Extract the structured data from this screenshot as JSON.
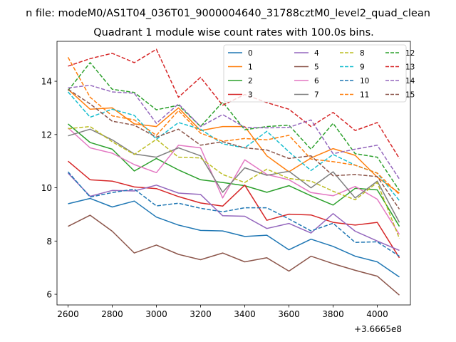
{
  "chart_data": {
    "type": "line",
    "suptitle": "n file: modeM0/AS1T04_036T01_9000004640_31788cztM0_level2_quad_clean",
    "title": "Quadrant 1 module wise count rates with 100.0s bins.",
    "xlabel": "",
    "ylabel": "",
    "x_offset_label": "+3.6665e8",
    "xlim": [
      2550,
      4150
    ],
    "ylim": [
      5.6,
      15.5
    ],
    "xticks": [
      2600,
      2800,
      3000,
      3200,
      3400,
      3600,
      3800,
      4000
    ],
    "xtick_labels": [
      "2600",
      "2800",
      "3000",
      "3200",
      "3400",
      "3600",
      "3800",
      "4000"
    ],
    "yticks": [
      6,
      8,
      10,
      12,
      14
    ],
    "ytick_labels": [
      "6",
      "8",
      "10",
      "12",
      "14"
    ],
    "grid": false,
    "legend_position": "top-right",
    "legend_columns": 4,
    "x": [
      2600,
      2700,
      2800,
      2900,
      3000,
      3100,
      3200,
      3300,
      3400,
      3500,
      3600,
      3700,
      3800,
      3900,
      4000,
      4100
    ],
    "series": [
      {
        "name": "0",
        "color": "#1f77b4",
        "dash": "solid",
        "values": [
          9.4,
          9.6,
          9.28,
          9.5,
          8.9,
          8.6,
          8.4,
          8.38,
          8.17,
          8.22,
          7.67,
          8.07,
          7.8,
          7.43,
          7.22,
          6.65
        ]
      },
      {
        "name": "1",
        "color": "#ff7f0e",
        "dash": "solid",
        "values": [
          13.7,
          12.95,
          13.0,
          12.4,
          12.3,
          13.0,
          12.15,
          12.3,
          12.3,
          11.2,
          10.6,
          11.12,
          11.47,
          11.22,
          10.4,
          9.8
        ]
      },
      {
        "name": "2",
        "color": "#2ca02c",
        "dash": "solid",
        "values": [
          12.4,
          11.7,
          11.45,
          10.63,
          11.1,
          10.67,
          10.3,
          10.2,
          10.08,
          9.83,
          10.08,
          9.7,
          9.35,
          9.98,
          9.92,
          8.55
        ]
      },
      {
        "name": "3",
        "color": "#d62728",
        "dash": "solid",
        "values": [
          11.0,
          10.3,
          10.25,
          10.03,
          9.97,
          9.67,
          9.43,
          9.31,
          10.1,
          8.78,
          9.01,
          8.98,
          8.7,
          8.6,
          8.7,
          7.37
        ]
      },
      {
        "name": "4",
        "color": "#9467bd",
        "dash": "solid",
        "values": [
          10.55,
          9.68,
          9.9,
          9.88,
          10.1,
          9.8,
          9.75,
          8.95,
          8.93,
          8.47,
          8.66,
          8.3,
          9.03,
          8.37,
          8.0,
          7.65
        ]
      },
      {
        "name": "5",
        "color": "#8c564b",
        "dash": "solid",
        "values": [
          8.55,
          8.97,
          8.37,
          7.55,
          7.85,
          7.5,
          7.3,
          7.55,
          7.22,
          7.37,
          6.87,
          7.43,
          7.15,
          6.9,
          6.68,
          5.97
        ]
      },
      {
        "name": "6",
        "color": "#e377c2",
        "dash": "solid",
        "values": [
          12.25,
          11.5,
          11.3,
          10.87,
          10.57,
          11.6,
          11.5,
          9.62,
          11.05,
          10.5,
          10.3,
          9.82,
          9.7,
          10.05,
          9.57,
          8.25
        ]
      },
      {
        "name": "7",
        "color": "#7f7f7f",
        "dash": "solid",
        "values": [
          11.95,
          12.2,
          11.8,
          11.27,
          11.15,
          11.5,
          11.2,
          9.83,
          10.75,
          10.47,
          10.62,
          10.0,
          10.6,
          9.62,
          10.25,
          8.7
        ]
      },
      {
        "name": "8",
        "color": "#bcbd22",
        "dash": "dashed",
        "values": [
          12.22,
          12.3,
          11.73,
          11.25,
          11.82,
          11.15,
          11.12,
          10.5,
          10.2,
          10.7,
          10.35,
          10.25,
          9.87,
          9.55,
          10.2,
          8.1
        ]
      },
      {
        "name": "9",
        "color": "#17becf",
        "dash": "dashed",
        "values": [
          13.6,
          12.65,
          12.95,
          12.72,
          11.82,
          12.45,
          12.2,
          11.65,
          11.5,
          12.12,
          11.35,
          10.65,
          11.25,
          10.85,
          10.55,
          9.52
        ]
      },
      {
        "name": "10",
        "color": "#1f77b4",
        "dash": "dashed",
        "values": [
          10.6,
          9.65,
          9.82,
          9.95,
          9.32,
          9.42,
          9.23,
          9.1,
          9.25,
          9.25,
          8.83,
          8.38,
          8.67,
          7.95,
          7.97,
          7.43
        ]
      },
      {
        "name": "11",
        "color": "#ff7f0e",
        "dash": "dashed",
        "values": [
          14.9,
          13.4,
          12.7,
          12.55,
          11.97,
          12.9,
          12.05,
          11.75,
          11.85,
          11.8,
          11.97,
          11.08,
          10.98,
          10.85,
          10.55,
          9.75
        ]
      },
      {
        "name": "12",
        "color": "#2ca02c",
        "dash": "dashed",
        "values": [
          13.65,
          14.7,
          13.7,
          13.58,
          12.93,
          13.1,
          12.3,
          13.22,
          12.18,
          12.3,
          12.35,
          11.45,
          12.42,
          11.28,
          11.15,
          9.9
        ]
      },
      {
        "name": "13",
        "color": "#d62728",
        "dash": "dashed",
        "values": [
          14.57,
          14.85,
          15.05,
          14.7,
          15.2,
          13.4,
          14.15,
          13.1,
          13.5,
          13.2,
          12.95,
          12.3,
          12.83,
          12.15,
          12.45,
          11.1
        ]
      },
      {
        "name": "14",
        "color": "#9467bd",
        "dash": "dashed",
        "values": [
          13.75,
          13.85,
          13.6,
          13.55,
          12.42,
          13.15,
          12.3,
          12.75,
          12.27,
          12.25,
          12.27,
          12.55,
          11.28,
          11.45,
          11.6,
          10.33
        ]
      },
      {
        "name": "15",
        "color": "#8c564b",
        "dash": "dashed",
        "values": [
          13.7,
          13.15,
          12.5,
          12.35,
          11.9,
          12.2,
          11.6,
          11.73,
          11.5,
          11.42,
          11.1,
          11.2,
          10.45,
          10.5,
          10.42,
          9.2
        ]
      }
    ]
  }
}
